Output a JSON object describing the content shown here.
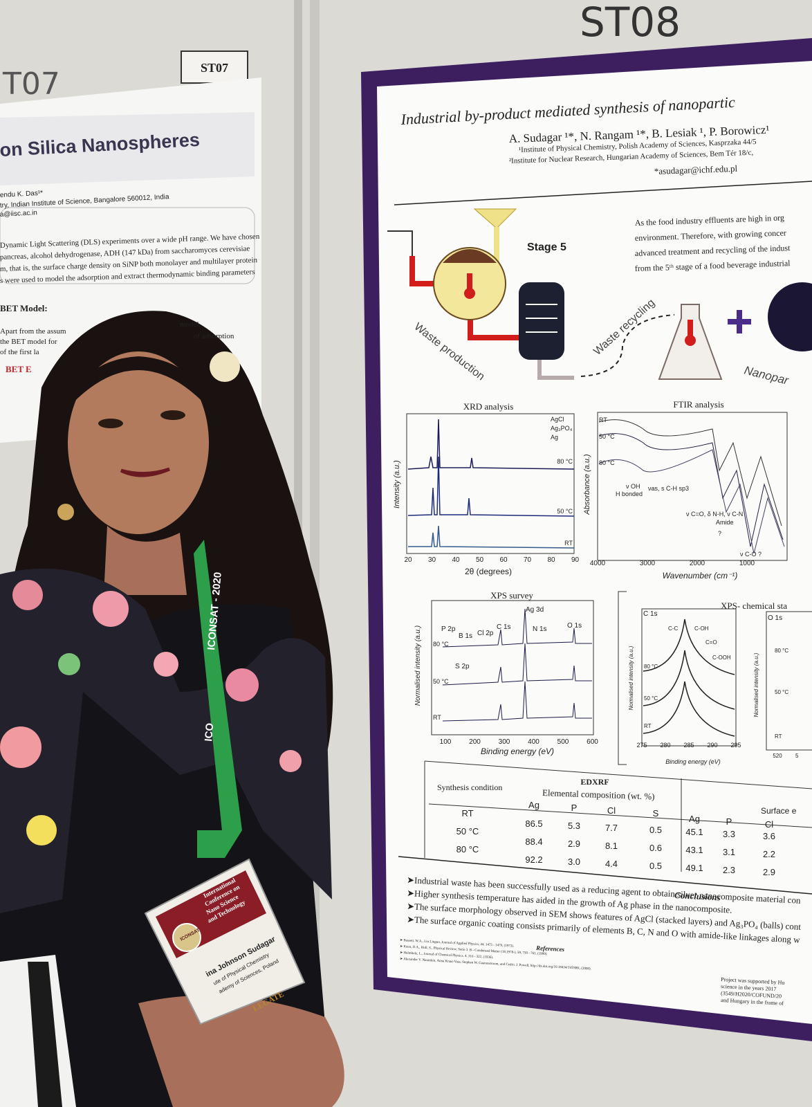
{
  "left_poster": {
    "board_label": "ST07",
    "handwritten": "T07",
    "title": "on Silica Nanospheres",
    "authors": "endu K. Das¹*",
    "affiliation": "try, Indian Institute of Science, Bangalore 560012, India",
    "email": "a@iisc.ac.in",
    "abstract_lines": [
      "Dynamic Light Scattering (DLS) experiments over a wide pH range. We have chosen",
      "pancreas, alcohol dehydrogenase, ADH (147 kDa) from saccharomyces cerevisiae",
      "m, that is, the surface charge density on SiNP both monolayer and multilayer protein",
      "s were used to model the adsorption and extract thermodynamic binding parameters"
    ],
    "section": "BET Model:",
    "section_lines": [
      "Apart from the assum",
      "the BET model for",
      "of the first la"
    ],
    "section_right": [
      "model,",
      "of adsorption"
    ],
    "equation_label": "BET E"
  },
  "right_poster": {
    "handwritten": "ST08",
    "title": "Industrial by-product mediated synthesis of nanopartic",
    "authors": "A. Sudagar ¹*, N. Rangam ¹*, B. Lesiak ¹, P. Borowicz¹",
    "affiliations": [
      "¹Institute of Physical Chemistry, Polish Academy of Sciences, Kasprzaka 44/5",
      "²Institute for Nuclear Research, Hungarian Academy of Sciences, Bem Tér 18/c,"
    ],
    "email": "*asudagar@ichf.edu.pl",
    "stage": "Stage 5",
    "waste_production": "Waste production",
    "waste_recycling": "Waste recycling",
    "nanoparticles": "Nanopar",
    "intro_lines": [
      "As the food industry effluents are high in org",
      "environment. Therefore, with growing concer",
      "advanced treatment and recycling of the indust",
      "from the 5ᵗʰ stage of a food beverage industrial"
    ],
    "xrd": {
      "title": "XRD analysis",
      "ylabel": "Intensity (a.u.)",
      "xlabel": "2θ (degrees)",
      "legend": [
        "AgCl",
        "Ag₃PO₄",
        "Ag"
      ],
      "series_labels": [
        "80 °C",
        "50 °C",
        "RT"
      ],
      "xticks": [
        20,
        30,
        40,
        50,
        60,
        70,
        80,
        90
      ]
    },
    "ftir": {
      "title": "FTIR analysis",
      "ylabel": "Absorbance (a.u.)",
      "xlabel": "Wavenumber (cm⁻¹)",
      "series_labels": [
        "RT",
        "50 °C",
        "80 °C"
      ],
      "annotations": [
        "ν OH",
        "H bonded",
        "νas, s C-H sp3",
        "ν C=O, δ N-H, ν C-N",
        "Amide",
        "?",
        "ν C-O ?"
      ],
      "xticks": [
        4000,
        3000,
        2000,
        1000
      ]
    },
    "xps_survey": {
      "title": "XPS survey",
      "ylabel": "Normalised intensity (a.u.)",
      "xlabel": "Binding energy (eV)",
      "peaks": [
        "P 2p",
        "B 1s",
        "Cl 2p",
        "C 1s",
        "Ag 3d",
        "N 1s",
        "O 1s",
        "S 2p"
      ],
      "series_labels": [
        "80 °C",
        "50 °C",
        "RT"
      ],
      "xticks": [
        100,
        200,
        300,
        400,
        500,
        600
      ]
    },
    "xps_chemical": {
      "title": "XPS- chemical sta",
      "ylabel": "Normalised intensity (a.u.)",
      "xlabel": "Binding energy (eV)",
      "panel1": "C 1s",
      "components": [
        "C-C",
        "C-OH",
        "C=O",
        "C-OOH"
      ],
      "series_labels": [
        "80 °C",
        "50 °C",
        "RT"
      ],
      "xticks": [
        275,
        280,
        285,
        290,
        295
      ],
      "panel2": "O 1s",
      "panel2_series": [
        "80 °C",
        "50 °C",
        "RT"
      ],
      "panel2_ticks": [
        "520",
        "5"
      ]
    },
    "table": {
      "title": "EDXRF",
      "condition_header": "Synthesis condition",
      "composition_header": "Elemental composition (wt. %)",
      "surface_header": "Surface e",
      "columns": [
        "Ag",
        "P",
        "Cl",
        "S"
      ],
      "surface_columns": [
        "Ag",
        "P",
        "Cl"
      ],
      "rows": [
        [
          "RT",
          "86.5",
          "5.3",
          "7.7",
          "0.5",
          "45.1",
          "3.3",
          "3.6"
        ],
        [
          "50 °C",
          "88.4",
          "2.9",
          "8.1",
          "0.6",
          "43.1",
          "3.1",
          "2.2"
        ],
        [
          "80 °C",
          "92.2",
          "3.0",
          "4.4",
          "0.5",
          "49.1",
          "2.3",
          "2.9"
        ]
      ]
    },
    "conclusions": {
      "title": "Conclusions",
      "items": [
        "➤Industrial waste has been successfully used as a reducing agent to obtain silver nanocomposite material con",
        "➤Higher synthesis temperature has aided in the growth of Ag phase in the nanocomposite.",
        "➤The surface morphology observed in SEM shows features of AgCl (stacked layers) and Ag₃PO₄ (balls) cont",
        "➤The surface organic coating  consists primarily of elements B, C, N and O with amide-like linkages along w"
      ]
    },
    "references": {
      "title": "References",
      "items": [
        "➤ Bassett, W.A., Lin Lingun, Journal of Applied Physics, 44, 1475 - 1479, (1973).",
        "➤ Keen, D.A., Hull, S., Physical Review, Serie 3. B - Condensed Matter (18,1978-), 59, 750 - 761, (1999).",
        "➤ Helmholz, L., Journal of Chemical Physics, 4, 316 - 322, (1936).",
        "➤ Alexander V. Naumkin, Anna Kraut-Vass, Stephen W. Gaarenstroom, and Cedric J. Powell, http://dx.doi.org/10.18434/T4T88K, (2000)."
      ]
    },
    "funding": [
      "Project was supported by Hu",
      "science in the years 2017",
      "(3549/H2020/COFUND/20",
      "and Hungary in the frame of"
    ]
  },
  "lanyard": [
    "ICONSAT - 2020",
    "ICO"
  ],
  "badge": [
    "International",
    "Conference on",
    "Nano Science",
    "and Technology",
    "ICONSAT",
    "ina Johnson Sudagar",
    "ute of Physical Chemistry",
    "ademy of Sciences, Poland",
    "LEGATE"
  ]
}
